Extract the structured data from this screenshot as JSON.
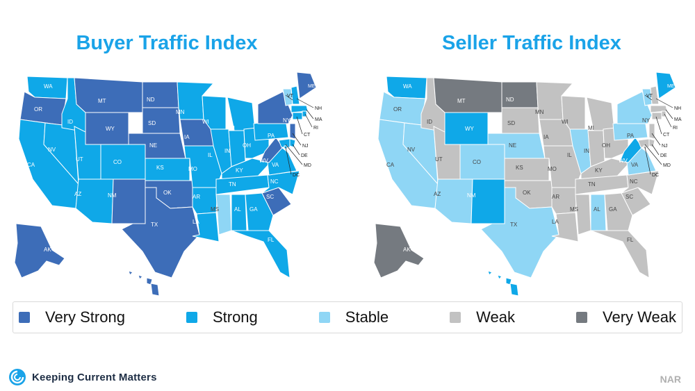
{
  "titles": {
    "buyer": "Buyer Traffic Index",
    "seller": "Seller Traffic Index"
  },
  "colors": {
    "very_strong": "#3D6DB8",
    "strong": "#0FA8E8",
    "stable": "#8FD6F5",
    "weak": "#C2C2C2",
    "very_weak": "#757A80"
  },
  "legend": [
    {
      "label": "Very Strong",
      "key": "very_strong"
    },
    {
      "label": "Strong",
      "key": "strong"
    },
    {
      "label": "Stable",
      "key": "stable"
    },
    {
      "label": "Weak",
      "key": "weak"
    },
    {
      "label": "Very Weak",
      "key": "very_weak"
    }
  ],
  "buyer": {
    "WA": "strong",
    "OR": "very_strong",
    "CA": "strong",
    "NV": "strong",
    "ID": "strong",
    "MT": "very_strong",
    "WY": "very_strong",
    "UT": "strong",
    "AZ": "strong",
    "CO": "strong",
    "NM": "very_strong",
    "ND": "very_strong",
    "SD": "very_strong",
    "NE": "very_strong",
    "KS": "strong",
    "OK": "very_strong",
    "TX": "very_strong",
    "MN": "strong",
    "IA": "very_strong",
    "MO": "strong",
    "AR": "strong",
    "LA": "strong",
    "WI": "strong",
    "IL": "strong",
    "MS": "stable",
    "MI": "strong",
    "IN": "strong",
    "KY": "strong",
    "TN": "strong",
    "AL": "strong",
    "OH": "strong",
    "GA": "strong",
    "FL": "strong",
    "SC": "very_strong",
    "NC": "strong",
    "VA": "strong",
    "WV": "very_strong",
    "PA": "strong",
    "NY": "very_strong",
    "VT": "stable",
    "NH": "strong",
    "ME": "very_strong",
    "MA": "strong",
    "RI": "strong",
    "CT": "strong",
    "NJ": "very_strong",
    "DE": "strong",
    "MD": "strong",
    "DC": "strong",
    "AK": "very_strong",
    "HI": "very_strong"
  },
  "seller": {
    "WA": "strong",
    "OR": "stable",
    "CA": "stable",
    "NV": "stable",
    "ID": "weak",
    "MT": "very_weak",
    "WY": "strong",
    "UT": "weak",
    "AZ": "stable",
    "CO": "stable",
    "NM": "strong",
    "ND": "very_weak",
    "SD": "weak",
    "NE": "stable",
    "KS": "weak",
    "OK": "weak",
    "TX": "stable",
    "MN": "weak",
    "IA": "weak",
    "MO": "weak",
    "AR": "weak",
    "LA": "weak",
    "WI": "weak",
    "IL": "stable",
    "MS": "weak",
    "MI": "weak",
    "IN": "weak",
    "KY": "weak",
    "TN": "weak",
    "AL": "stable",
    "OH": "weak",
    "GA": "weak",
    "FL": "weak",
    "SC": "weak",
    "NC": "weak",
    "VA": "stable",
    "WV": "strong",
    "PA": "stable",
    "NY": "stable",
    "VT": "stable",
    "NH": "weak",
    "ME": "strong",
    "MA": "weak",
    "RI": "weak",
    "CT": "weak",
    "NJ": "weak",
    "DE": "weak",
    "MD": "weak",
    "DC": "weak",
    "AK": "very_weak",
    "HI": "strong"
  },
  "footer": {
    "logo_text": "Keeping Current Matters",
    "source": "NAR"
  }
}
